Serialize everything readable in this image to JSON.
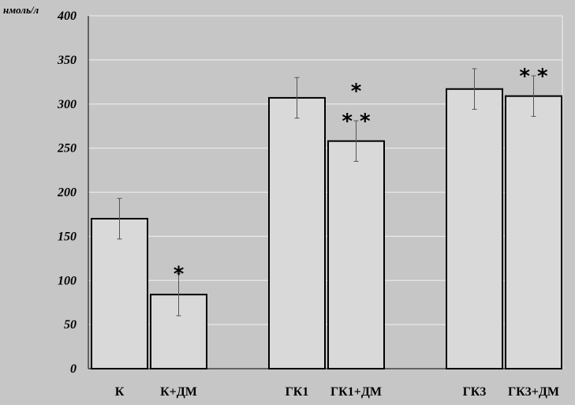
{
  "chart_data": {
    "type": "bar",
    "ylabel": "нмоль/л",
    "ylim": [
      0,
      400
    ],
    "yticks": [
      0,
      50,
      100,
      150,
      200,
      250,
      300,
      350,
      400
    ],
    "grid": true,
    "categories": [
      "К",
      "К+ДМ",
      "ГК1",
      "ГК1+ДМ",
      "ГК3",
      "ГК3+ДМ"
    ],
    "values": [
      170,
      84,
      307,
      258,
      317,
      309
    ],
    "errors": [
      23,
      24,
      23,
      23,
      23,
      23
    ],
    "significance": [
      [],
      [
        "*"
      ],
      [],
      [
        "* *",
        "*"
      ],
      [],
      [
        "* *"
      ]
    ],
    "colors": {
      "background": "#c6c6c6",
      "bar_fill": "#d9d9d9",
      "bar_stroke": "#000000",
      "grid": "#e8e8e8",
      "errorbar": "#555555"
    }
  }
}
